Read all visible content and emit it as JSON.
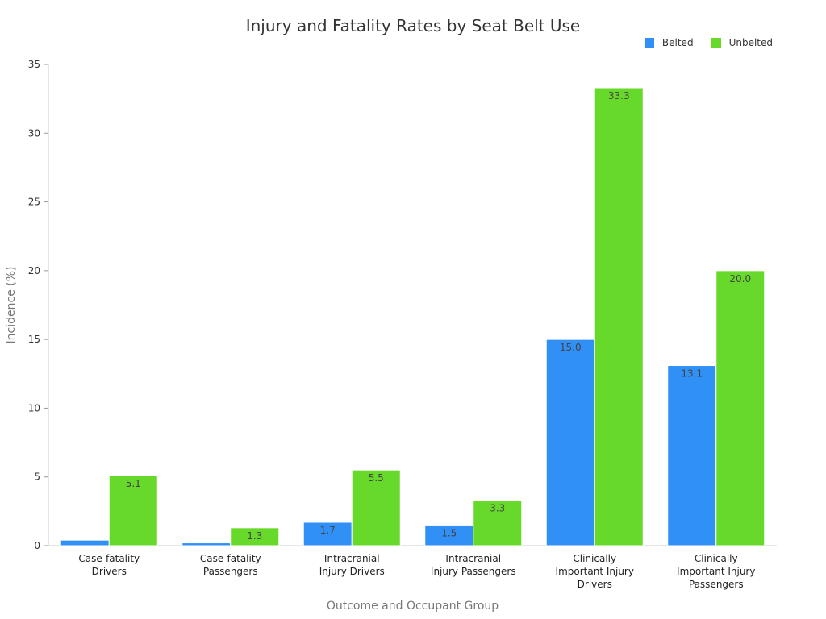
{
  "chart_data": {
    "type": "bar",
    "title": "Injury and Fatality Rates by Seat Belt Use",
    "xlabel": "Outcome and Occupant Group",
    "ylabel": "Incidence (%)",
    "ylim": [
      0,
      35
    ],
    "yticks": [
      0,
      5,
      10,
      15,
      20,
      25,
      30,
      35
    ],
    "grid": false,
    "legend_position": "top-right",
    "categories": [
      [
        "Case-fatality",
        "Drivers"
      ],
      [
        "Case-fatality",
        "Passengers"
      ],
      [
        "Intracranial",
        "Injury Drivers"
      ],
      [
        "Intracranial",
        "Injury Passengers"
      ],
      [
        "Clinically",
        "Important Injury",
        "Drivers"
      ],
      [
        "Clinically",
        "Important Injury",
        "Passengers"
      ]
    ],
    "series": [
      {
        "name": "Belted",
        "color": "#3090f5",
        "values": [
          0.4,
          0.2,
          1.7,
          1.5,
          15.0,
          13.1
        ],
        "labels": [
          "",
          "",
          "1.7",
          "1.5",
          "15.0",
          "13.1"
        ]
      },
      {
        "name": "Unbelted",
        "color": "#66d92a",
        "values": [
          5.1,
          1.3,
          5.5,
          3.3,
          33.3,
          20.0
        ],
        "labels": [
          "5.1",
          "1.3",
          "5.5",
          "3.3",
          "33.3",
          "20.0"
        ]
      }
    ]
  }
}
